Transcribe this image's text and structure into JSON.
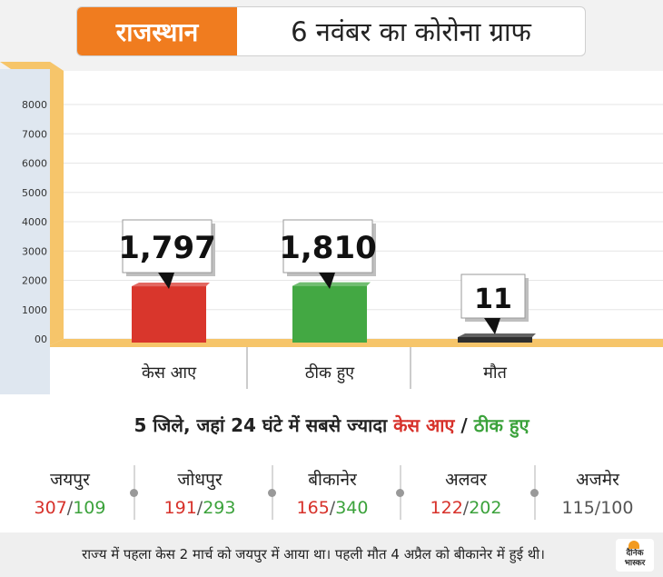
{
  "header": {
    "state": "राजस्थान",
    "title": "6 नवंबर का कोरोना ग्राफ"
  },
  "chart_data": {
    "type": "bar",
    "categories": [
      "केस आए",
      "ठीक हुए",
      "मौत"
    ],
    "values": [
      1797,
      1810,
      11
    ],
    "value_labels": [
      "1,797",
      "1,810",
      "11"
    ],
    "ylim": [
      0,
      8000
    ],
    "yticks": [
      "00",
      "1000",
      "2000",
      "3000",
      "4000",
      "5000",
      "6000",
      "7000",
      "8000"
    ],
    "ytick_values": [
      0,
      1000,
      2000,
      3000,
      4000,
      5000,
      6000,
      7000,
      8000
    ],
    "colors": [
      "#d9362c",
      "#43a843",
      "#2f2f2f"
    ]
  },
  "districts_section": {
    "title_prefix": "5 जिले, जहां 24 घंटे में सबसे ज्यादा",
    "cases_label": "केस आए",
    "separator": "/",
    "recovered_label": "ठीक हुए",
    "slash": "/",
    "items": [
      {
        "name": "जयपुर",
        "cases": "307",
        "recovered": "109"
      },
      {
        "name": "जोधपुर",
        "cases": "191",
        "recovered": "293"
      },
      {
        "name": "बीकानेर",
        "cases": "165",
        "recovered": "340"
      },
      {
        "name": "अलवर",
        "cases": "122",
        "recovered": "202"
      },
      {
        "name": "अजमेर",
        "cases": "115",
        "recovered": "100"
      }
    ]
  },
  "footer": {
    "note": "राज्य में पहला केस 2 मार्च को जयपुर में आया था। पहली मौत 4 अप्रैल को बीकानेर में हुई थी।",
    "logo": "दैनिक भास्कर"
  }
}
